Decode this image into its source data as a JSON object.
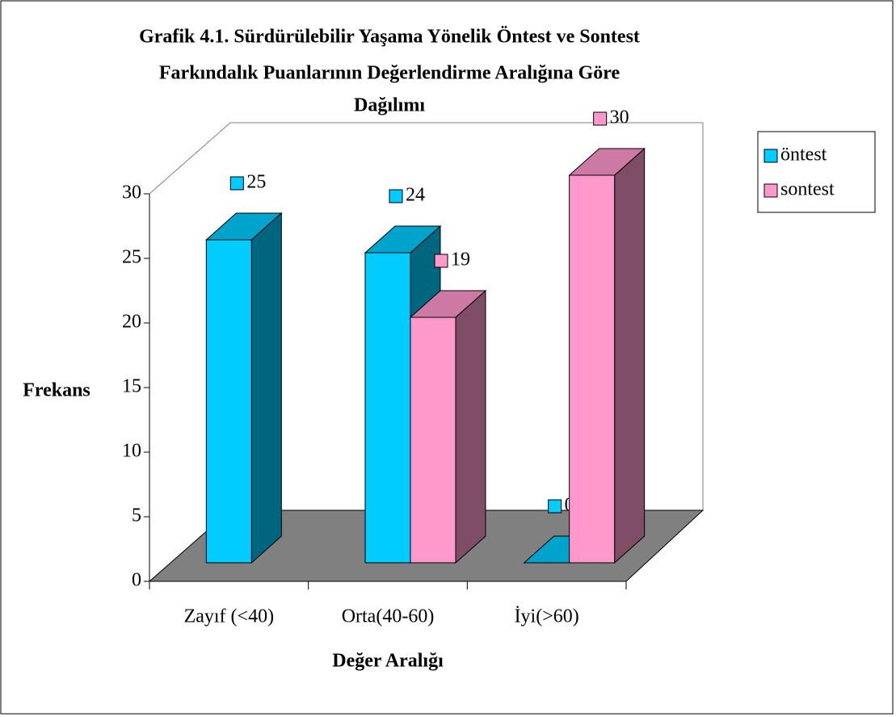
{
  "chart_data": {
    "type": "bar3d",
    "title": [
      "Grafik 4.1. Sürdürülebilir Yaşama Yönelik Öntest ve Sontest",
      "Farkındalık Puanlarının Değerlendirme Aralığına Göre",
      "Dağılımı"
    ],
    "categories": [
      "Zayıf (<40)",
      "Orta(40-60)",
      "İyi(>60)"
    ],
    "series": [
      {
        "name": "öntest",
        "color": "#00ccff",
        "values": [
          25,
          24,
          0
        ]
      },
      {
        "name": "sontest",
        "color": "#ff99cc",
        "values": [
          null,
          19,
          30
        ]
      }
    ],
    "xlabel": "Değer Aralığı",
    "ylabel": "Frekans",
    "ylim": [
      0,
      30
    ],
    "yticks": [
      0,
      5,
      10,
      15,
      20,
      25,
      30
    ],
    "legend": "right"
  }
}
